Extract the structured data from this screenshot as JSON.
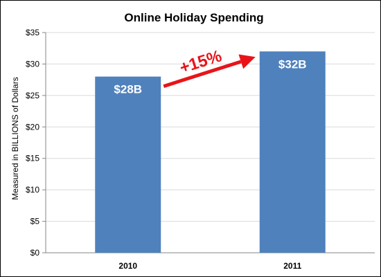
{
  "chart_data": {
    "type": "bar",
    "title": "Online Holiday Spending",
    "ylabel": "Measured in BILLIONS of Dollars",
    "xlabel": "",
    "categories": [
      "2010",
      "2011"
    ],
    "values": [
      28,
      32
    ],
    "data_labels": [
      "$28B",
      "$32B"
    ],
    "ylim": [
      0,
      35
    ],
    "yticks": [
      0,
      5,
      10,
      15,
      20,
      25,
      30,
      35
    ],
    "ytick_labels": [
      "$0",
      "$5",
      "$10",
      "$15",
      "$20",
      "$25",
      "$30",
      "$35"
    ],
    "grid": true,
    "legend": "none",
    "annotation": {
      "text": "+15%",
      "arrow": "from 2010 bar to 2011 bar"
    },
    "colors": {
      "bar": "#4f81bd",
      "annotation": "#e8141a",
      "grid": "#d9d9d9",
      "axis": "#868686"
    }
  }
}
